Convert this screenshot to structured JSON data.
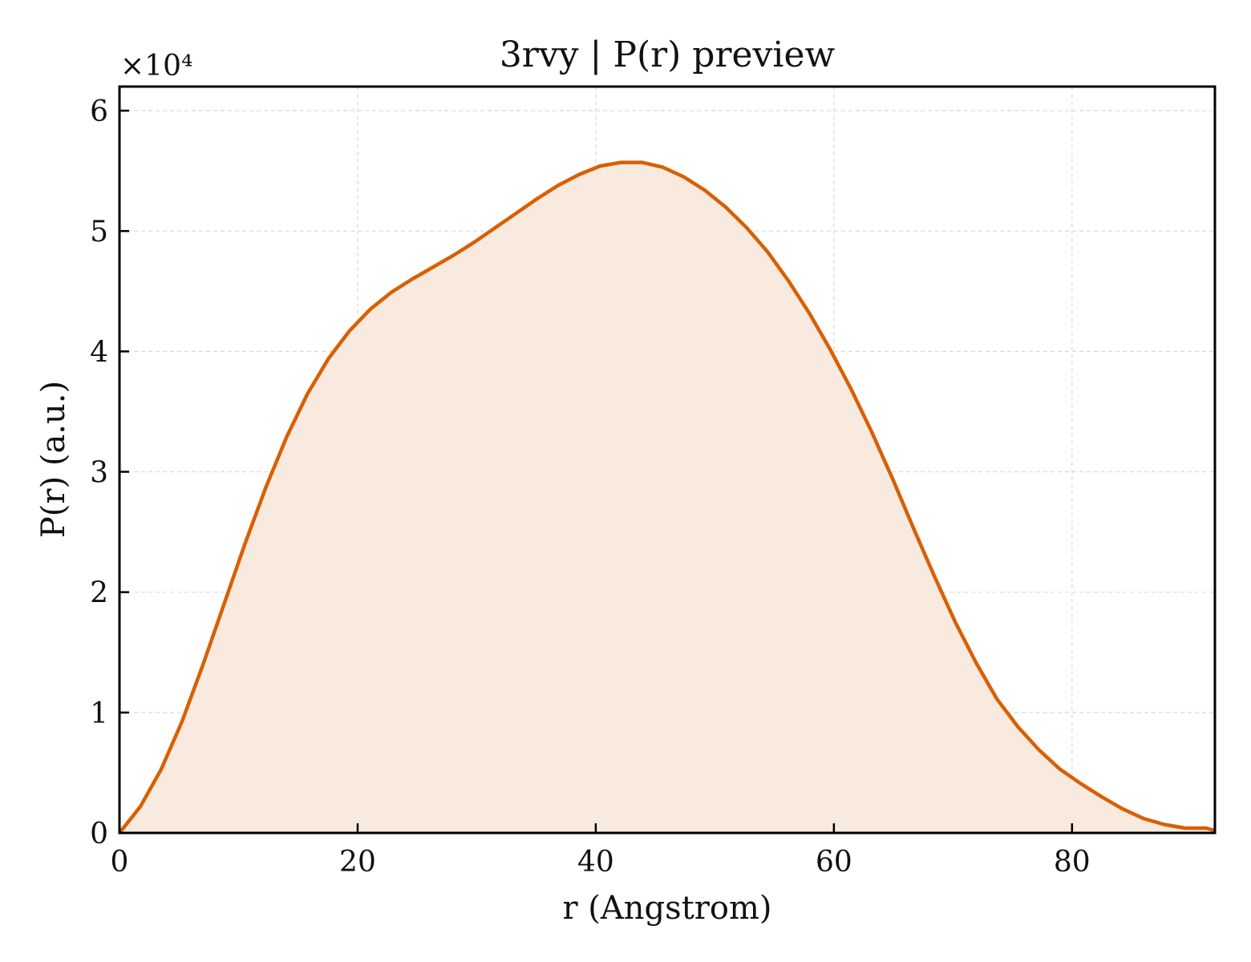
{
  "chart_data": {
    "type": "area",
    "title": "3rvy | P(r) preview",
    "xlabel": "r (Angstrom)",
    "ylabel": "P(r) (a.u.)",
    "y_multiplier": "×10⁴",
    "xlim": [
      0,
      92
    ],
    "ylim": [
      0,
      62000
    ],
    "xticks": [
      0,
      20,
      40,
      60,
      80
    ],
    "xtick_labels": [
      "0",
      "20",
      "40",
      "60",
      "80"
    ],
    "yticks": [
      0,
      10000,
      20000,
      30000,
      40000,
      50000,
      60000
    ],
    "ytick_labels": [
      "0",
      "1",
      "2",
      "3",
      "4",
      "5",
      "6"
    ],
    "grid": true,
    "scale": "linear",
    "series": [
      {
        "color": "#d95f02",
        "fill_color": "#f8eadf",
        "x": [
          0,
          1.76,
          3.51,
          5.27,
          7.02,
          8.78,
          10.53,
          12.29,
          14.04,
          15.8,
          17.55,
          19.31,
          21.06,
          22.82,
          24.57,
          26.33,
          28.08,
          29.84,
          31.59,
          33.35,
          35.1,
          36.86,
          38.61,
          40.37,
          42.12,
          43.88,
          45.63,
          47.39,
          49.14,
          50.9,
          52.65,
          54.41,
          56.16,
          57.92,
          59.67,
          61.43,
          63.18,
          64.94,
          66.69,
          68.45,
          70.2,
          71.96,
          73.71,
          75.47,
          77.22,
          78.98,
          80.73,
          82.49,
          84.24,
          86.0,
          87.75,
          89.51,
          91.26,
          92.0
        ],
        "y": [
          0,
          2200,
          5300,
          9300,
          14000,
          19000,
          24000,
          28700,
          32900,
          36500,
          39400,
          41700,
          43500,
          44900,
          46000,
          47000,
          48000,
          49100,
          50300,
          51500,
          52700,
          53800,
          54700,
          55400,
          55700,
          55700,
          55300,
          54500,
          53400,
          52000,
          50300,
          48300,
          45900,
          43200,
          40200,
          36900,
          33300,
          29400,
          25300,
          21300,
          17500,
          14100,
          11100,
          8800,
          6900,
          5300,
          4100,
          3000,
          2000,
          1200,
          700,
          400,
          400,
          200
        ]
      }
    ]
  }
}
